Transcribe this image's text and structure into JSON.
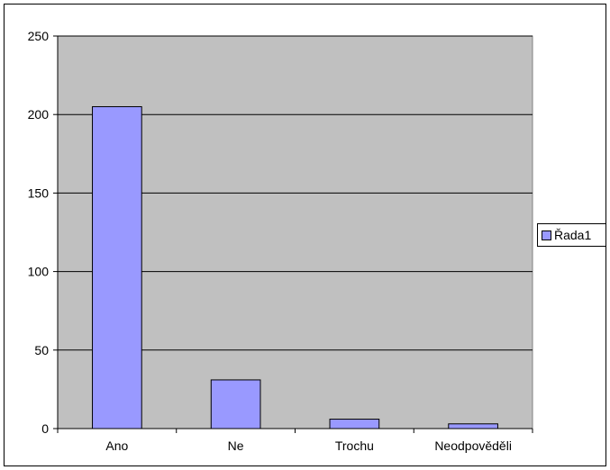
{
  "chart_data": {
    "type": "bar",
    "title": "",
    "xlabel": "",
    "ylabel": "",
    "categories": [
      "Ano",
      "Ne",
      "Trochu",
      "Neodpověděli"
    ],
    "series": [
      {
        "name": "Řada1",
        "values": [
          205,
          31,
          6,
          3
        ]
      }
    ],
    "ylim": [
      0,
      250
    ],
    "yticks": [
      0,
      50,
      100,
      150,
      200,
      250
    ],
    "grid": true,
    "legend": "right",
    "colors": {
      "bar": "#9999ff",
      "plot_bg": "#c0c0c0",
      "grid": "#000000"
    }
  }
}
